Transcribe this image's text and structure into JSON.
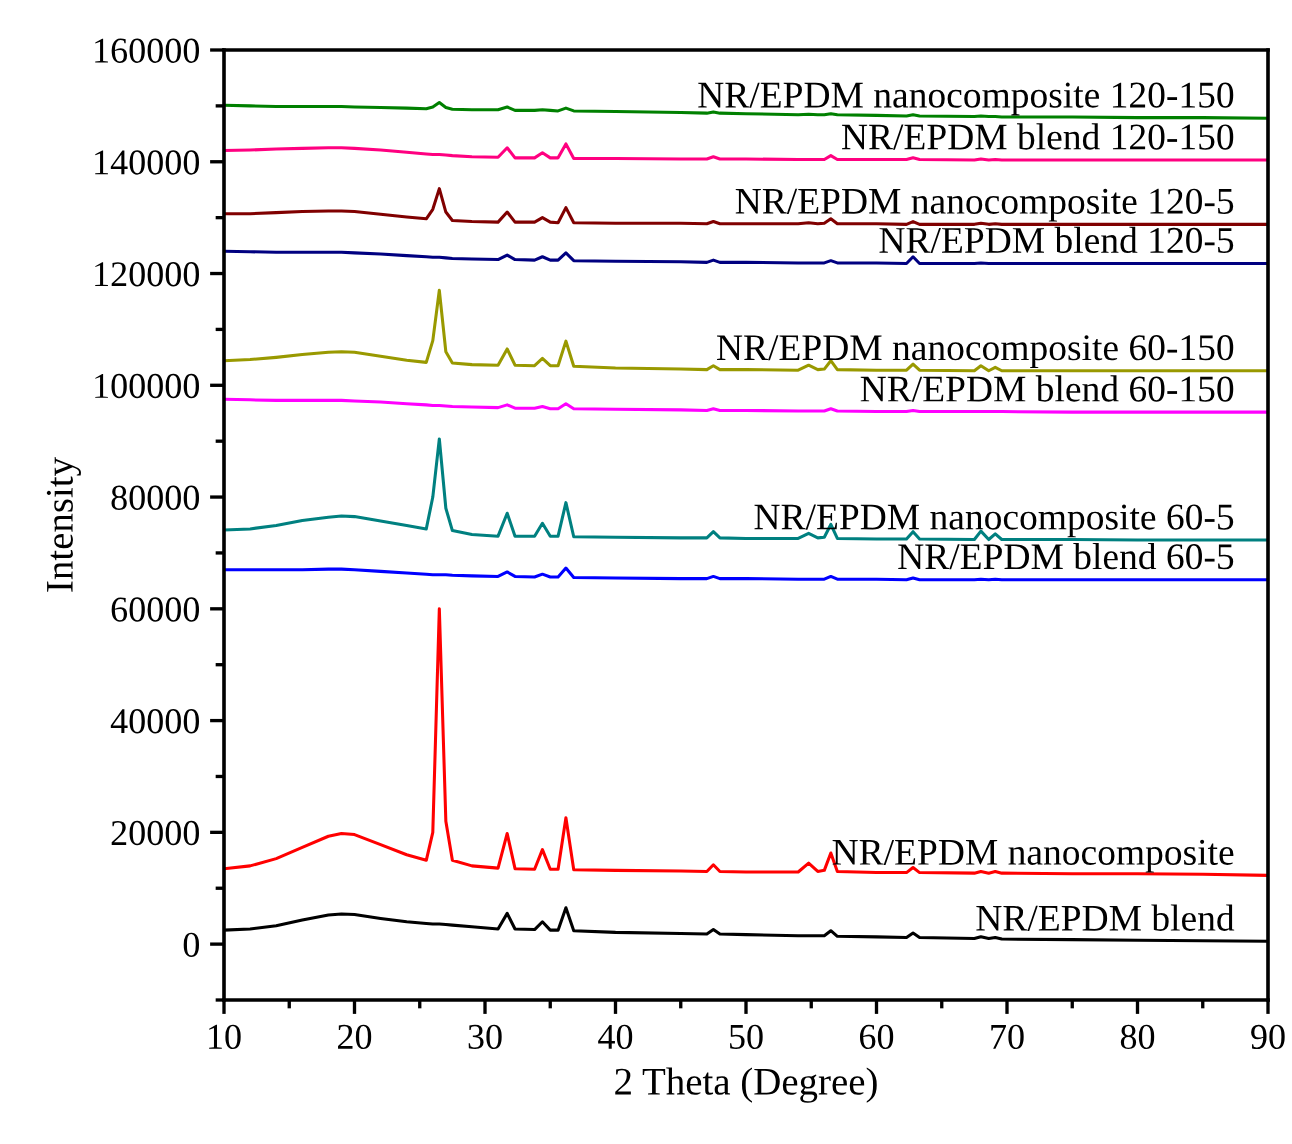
{
  "chart_data": {
    "type": "line",
    "xlabel": "2 Theta (Degree)",
    "ylabel": "Intensity",
    "xlim": [
      10,
      90
    ],
    "ylim": [
      -10000,
      160000
    ],
    "xticks": [
      10,
      20,
      30,
      40,
      50,
      60,
      70,
      80,
      90
    ],
    "yticks": [
      0,
      20000,
      40000,
      60000,
      80000,
      100000,
      120000,
      140000,
      160000
    ],
    "grid": false,
    "legend": false,
    "marker": "none",
    "line_style": "solid",
    "x": [
      10,
      12,
      14,
      16,
      18,
      19,
      20,
      22,
      24,
      25.5,
      26,
      26.5,
      27,
      27.5,
      29,
      31,
      31.7,
      32.3,
      33.8,
      34.4,
      35,
      35.6,
      36.2,
      36.8,
      40,
      45,
      47,
      47.5,
      48,
      50,
      54,
      54.8,
      55.5,
      56,
      56.5,
      57,
      60,
      62.3,
      62.8,
      63.3,
      67.5,
      68,
      68.6,
      69.1,
      69.6,
      75,
      80,
      85,
      90
    ],
    "series": [
      {
        "name": "NR/EPDM blend",
        "color": "#000000",
        "values": [
          2500,
          2700,
          3300,
          4300,
          5200,
          5400,
          5300,
          4600,
          4000,
          3700,
          3600,
          3600,
          3500,
          3400,
          3100,
          2700,
          5500,
          2700,
          2600,
          4000,
          2500,
          2500,
          6500,
          2400,
          2100,
          1900,
          1800,
          2600,
          1800,
          1700,
          1500,
          1500,
          1500,
          1500,
          2400,
          1400,
          1300,
          1200,
          2000,
          1200,
          1000,
          1300,
          1000,
          1200,
          900,
          800,
          700,
          600,
          500
        ]
      },
      {
        "name": "NR/EPDM nanocomposite",
        "color": "#ff0000",
        "values": [
          13500,
          14000,
          15300,
          17300,
          19300,
          19800,
          19600,
          17800,
          16000,
          15000,
          20000,
          60000,
          22000,
          15000,
          14000,
          13600,
          19800,
          13500,
          13400,
          16900,
          13400,
          13400,
          22600,
          13300,
          13200,
          13100,
          13000,
          14200,
          13000,
          12900,
          12900,
          14500,
          13000,
          13200,
          16300,
          13000,
          12800,
          12800,
          13700,
          12800,
          12700,
          13000,
          12700,
          13000,
          12700,
          12600,
          12600,
          12500,
          12300
        ]
      },
      {
        "name": "NR/EPDM blend 60-5",
        "color": "#0000ff",
        "values": [
          67000,
          67000,
          67000,
          67000,
          67100,
          67100,
          67000,
          66700,
          66400,
          66200,
          66100,
          66100,
          66100,
          66000,
          65900,
          65800,
          66600,
          65800,
          65700,
          66200,
          65700,
          65700,
          67300,
          65600,
          65500,
          65400,
          65400,
          65800,
          65400,
          65400,
          65300,
          65300,
          65300,
          65300,
          65800,
          65300,
          65300,
          65200,
          65500,
          65200,
          65200,
          65300,
          65200,
          65300,
          65200,
          65200,
          65200,
          65200,
          65200
        ]
      },
      {
        "name": "NR/EPDM nanocomposite 60-5",
        "color": "#008080",
        "values": [
          74100,
          74300,
          74900,
          75800,
          76400,
          76600,
          76500,
          75700,
          74900,
          74300,
          80000,
          90400,
          78000,
          74000,
          73300,
          73000,
          77100,
          73000,
          73000,
          75300,
          73000,
          73000,
          79000,
          72900,
          72800,
          72700,
          72700,
          73800,
          72700,
          72600,
          72600,
          73500,
          72700,
          72800,
          75100,
          72600,
          72500,
          72500,
          73800,
          72500,
          72400,
          73900,
          72400,
          73400,
          72400,
          72400,
          72300,
          72300,
          72300
        ]
      },
      {
        "name": "NR/EPDM blend 60-150",
        "color": "#ff00ff",
        "values": [
          97500,
          97400,
          97300,
          97300,
          97300,
          97300,
          97200,
          97000,
          96700,
          96500,
          96400,
          96400,
          96300,
          96200,
          96100,
          96000,
          96500,
          95900,
          95900,
          96200,
          95800,
          95800,
          96700,
          95800,
          95700,
          95600,
          95500,
          95800,
          95500,
          95500,
          95400,
          95400,
          95400,
          95400,
          95800,
          95400,
          95300,
          95300,
          95500,
          95300,
          95300,
          95300,
          95300,
          95300,
          95300,
          95200,
          95200,
          95200,
          95200
        ]
      },
      {
        "name": "NR/EPDM nanocomposite 60-150",
        "color": "#999900",
        "values": [
          104400,
          104600,
          105000,
          105500,
          105900,
          106000,
          105900,
          105200,
          104500,
          104100,
          108000,
          117000,
          106000,
          104000,
          103700,
          103600,
          106500,
          103600,
          103500,
          104800,
          103500,
          103500,
          107900,
          103400,
          103100,
          102900,
          102800,
          103500,
          102800,
          102800,
          102700,
          103600,
          102800,
          102900,
          104400,
          102800,
          102700,
          102700,
          103800,
          102700,
          102600,
          103500,
          102600,
          103200,
          102600,
          102600,
          102600,
          102600,
          102600
        ]
      },
      {
        "name": "NR/EPDM blend 120-5",
        "color": "#000080",
        "values": [
          124000,
          123900,
          123800,
          123800,
          123800,
          123800,
          123700,
          123500,
          123200,
          123000,
          122900,
          122900,
          122800,
          122700,
          122600,
          122500,
          123300,
          122500,
          122400,
          123000,
          122400,
          122400,
          123700,
          122300,
          122200,
          122100,
          122000,
          122400,
          122000,
          122000,
          121900,
          121900,
          121900,
          121900,
          122300,
          121900,
          121900,
          121800,
          123000,
          121800,
          121800,
          121900,
          121800,
          121800,
          121800,
          121800,
          121800,
          121800,
          121800
        ]
      },
      {
        "name": "NR/EPDM nanocomposite 120-5",
        "color": "#800000",
        "values": [
          130700,
          130700,
          130900,
          131100,
          131200,
          131200,
          131100,
          130600,
          130100,
          129800,
          131500,
          135200,
          131000,
          129500,
          129300,
          129200,
          131000,
          129200,
          129200,
          130000,
          129200,
          129100,
          131800,
          129100,
          129000,
          129000,
          128900,
          129300,
          128900,
          128900,
          128900,
          129100,
          128900,
          129000,
          129800,
          128900,
          128900,
          128800,
          129300,
          128800,
          128800,
          129000,
          128800,
          128900,
          128800,
          128800,
          128800,
          128800,
          128800
        ]
      },
      {
        "name": "NR/EPDM blend 120-150",
        "color": "#ff0080",
        "values": [
          142000,
          142100,
          142300,
          142400,
          142500,
          142500,
          142400,
          142100,
          141700,
          141400,
          141300,
          141300,
          141200,
          141100,
          140900,
          140800,
          142500,
          140700,
          140700,
          141600,
          140700,
          140700,
          143200,
          140600,
          140600,
          140500,
          140500,
          140900,
          140500,
          140500,
          140400,
          140400,
          140400,
          140400,
          141100,
          140400,
          140400,
          140400,
          140700,
          140400,
          140300,
          140500,
          140300,
          140400,
          140300,
          140300,
          140300,
          140300,
          140300
        ]
      },
      {
        "name": "NR/EPDM nanocomposite 120-150",
        "color": "#008000",
        "values": [
          150100,
          150000,
          149900,
          149900,
          149900,
          149900,
          149800,
          149700,
          149600,
          149500,
          149800,
          150600,
          149700,
          149400,
          149300,
          149300,
          149800,
          149200,
          149200,
          149300,
          149200,
          149100,
          149600,
          149100,
          149000,
          148800,
          148700,
          148900,
          148700,
          148600,
          148400,
          148500,
          148400,
          148400,
          148600,
          148400,
          148300,
          148200,
          148400,
          148200,
          148100,
          148200,
          148100,
          148100,
          148000,
          148000,
          147900,
          147900,
          147800
        ]
      }
    ]
  }
}
